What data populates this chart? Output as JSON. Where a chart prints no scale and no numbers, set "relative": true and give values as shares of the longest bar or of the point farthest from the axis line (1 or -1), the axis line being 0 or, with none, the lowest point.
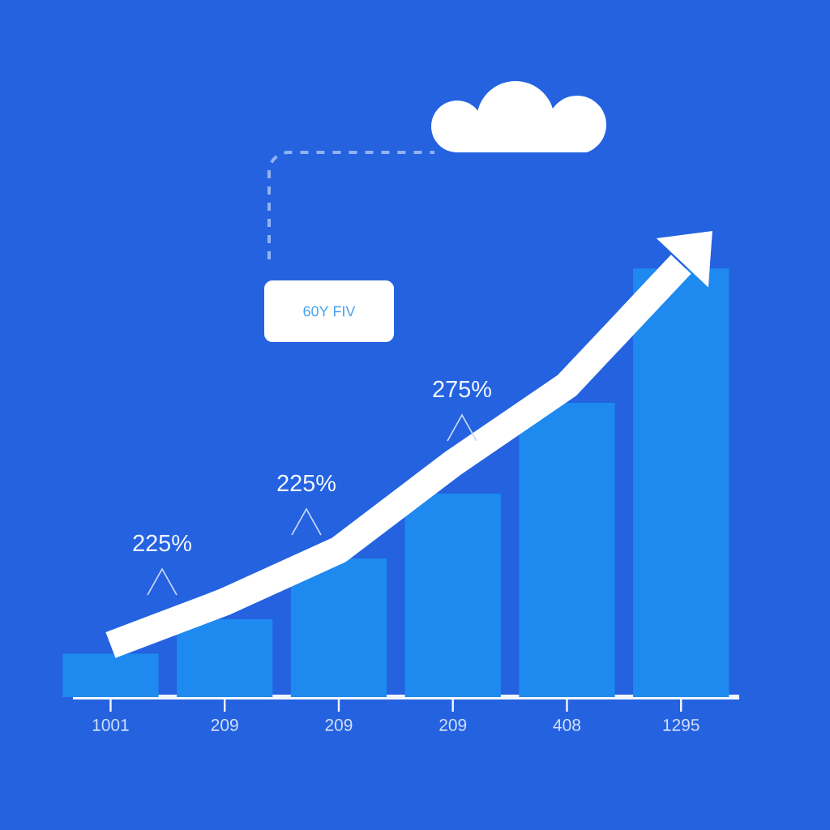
{
  "chart_data": {
    "type": "bar",
    "relative": true,
    "categories": [
      "1001",
      "209",
      "209",
      "209",
      "408",
      "1295"
    ],
    "series": [
      {
        "color": "#1e8af0",
        "values": [
          0.1,
          0.18,
          0.32,
          0.47,
          0.68,
          0.99
        ]
      },
      {
        "type": "line",
        "color": "#ffffff",
        "line_style": "solid",
        "values": [
          0.12,
          0.22,
          0.34,
          0.54,
          0.72,
          1.0
        ]
      }
    ],
    "annotations": [
      "225%",
      "225%",
      "275%",
      "60Y FIV"
    ]
  }
}
